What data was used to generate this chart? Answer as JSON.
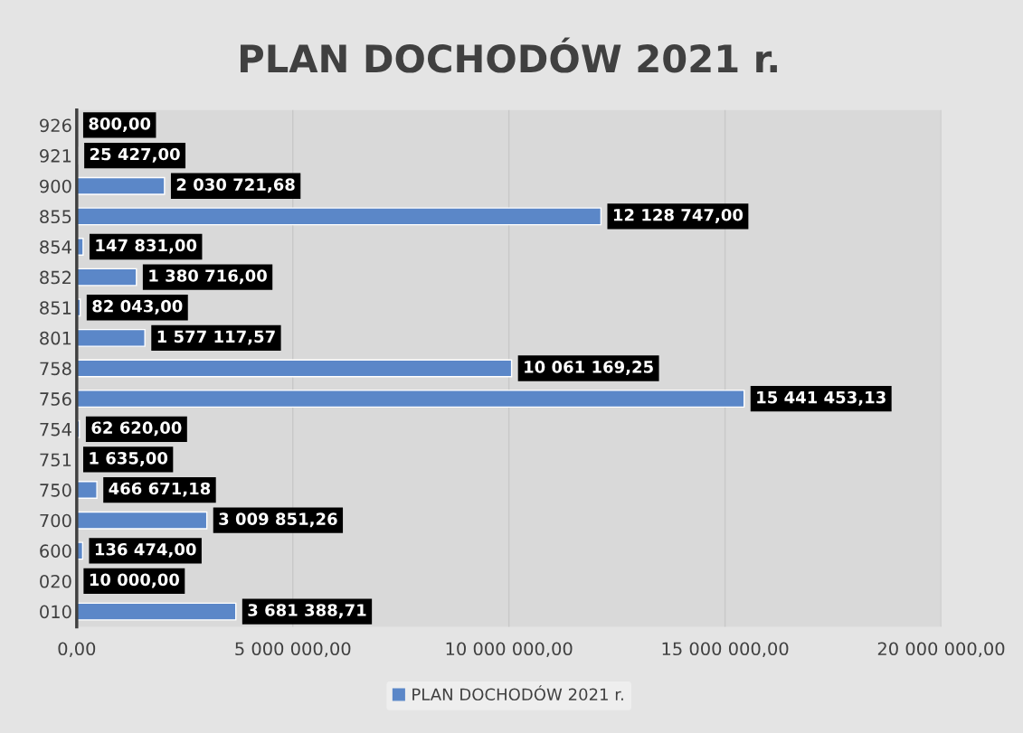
{
  "chart_data": {
    "type": "bar",
    "orientation": "horizontal",
    "title": "PLAN DOCHODÓW 2021 r.",
    "categories": [
      "926",
      "921",
      "900",
      "855",
      "854",
      "852",
      "851",
      "801",
      "758",
      "756",
      "754",
      "751",
      "750",
      "700",
      "600",
      "020",
      "010"
    ],
    "series": [
      {
        "name": "PLAN DOCHODÓW 2021 r.",
        "color": "#5b87c8",
        "values": [
          800.0,
          25427.0,
          2030721.68,
          12128747.0,
          147831.0,
          1380716.0,
          82043.0,
          1577117.57,
          10061169.25,
          15441453.13,
          62620.0,
          1635.0,
          466671.18,
          3009851.26,
          136474.0,
          10000.0,
          3681388.71
        ],
        "value_labels": [
          "800,00",
          "25 427,00",
          "2 030 721,68",
          "12 128 747,00",
          "147 831,00",
          "1 380 716,00",
          "82 043,00",
          "1 577 117,57",
          "10 061 169,25",
          "15 441 453,13",
          "62 620,00",
          "1 635,00",
          "466 671,18",
          "3 009 851,26",
          "136 474,00",
          "10 000,00",
          "3 681 388,71"
        ]
      }
    ],
    "xlim": [
      0,
      20000000
    ],
    "xticks": [
      {
        "value": 0,
        "label": "0,00"
      },
      {
        "value": 5000000,
        "label": "5 000 000,00"
      },
      {
        "value": 10000000,
        "label": "10 000 000,00"
      },
      {
        "value": 15000000,
        "label": "15 000 000,00"
      },
      {
        "value": 20000000,
        "label": "20 000 000,00"
      }
    ],
    "grid": "x",
    "legend": "bottom"
  }
}
